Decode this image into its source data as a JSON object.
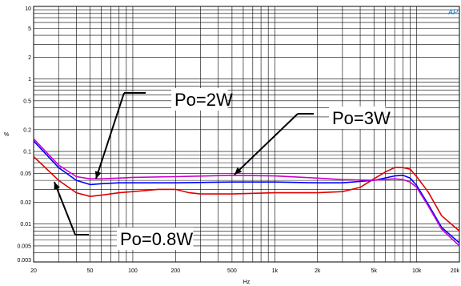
{
  "chart_data": {
    "type": "line",
    "title": "",
    "xlabel": "Hz",
    "ylabel": "%",
    "x_scale": "log",
    "y_scale": "log",
    "xlim": [
      20,
      20000
    ],
    "ylim": [
      0.003,
      10
    ],
    "grid": true,
    "x_ticks": [
      {
        "value": 20,
        "label": "20"
      },
      {
        "value": 50,
        "label": "50"
      },
      {
        "value": 100,
        "label": "100"
      },
      {
        "value": 200,
        "label": "200"
      },
      {
        "value": 500,
        "label": "500"
      },
      {
        "value": 1000,
        "label": "1k"
      },
      {
        "value": 2000,
        "label": "2k"
      },
      {
        "value": 5000,
        "label": "5k"
      },
      {
        "value": 10000,
        "label": "10k"
      },
      {
        "value": 20000,
        "label": "20k"
      }
    ],
    "y_ticks": [
      {
        "value": 10,
        "label": "10"
      },
      {
        "value": 5,
        "label": "5"
      },
      {
        "value": 2,
        "label": "2"
      },
      {
        "value": 1,
        "label": "1"
      },
      {
        "value": 0.5,
        "label": "0.5"
      },
      {
        "value": 0.2,
        "label": "0.2"
      },
      {
        "value": 0.1,
        "label": "0.1"
      },
      {
        "value": 0.05,
        "label": "0.05"
      },
      {
        "value": 0.02,
        "label": "0.02"
      },
      {
        "value": 0.01,
        "label": "0.01"
      },
      {
        "value": 0.005,
        "label": "0.005"
      },
      {
        "value": 0.003,
        "label": "0.003"
      }
    ],
    "series": [
      {
        "color": "#e00000",
        "x": [
          20,
          30,
          40,
          50,
          60,
          80,
          100,
          150,
          200,
          250,
          300,
          500,
          1000,
          2000,
          3000,
          4000,
          5000,
          6000,
          7000,
          8000,
          9000,
          10000,
          12000,
          15000,
          20000
        ],
        "y": [
          0.085,
          0.04,
          0.027,
          0.024,
          0.025,
          0.027,
          0.028,
          0.03,
          0.03,
          0.027,
          0.026,
          0.026,
          0.027,
          0.027,
          0.028,
          0.032,
          0.042,
          0.052,
          0.06,
          0.06,
          0.057,
          0.045,
          0.028,
          0.013,
          0.008
        ]
      },
      {
        "color": "#0000ff",
        "x": [
          20,
          30,
          40,
          50,
          60,
          80,
          100,
          200,
          500,
          1000,
          2000,
          3000,
          5000,
          7000,
          8000,
          9000,
          10000,
          12000,
          15000,
          20000
        ],
        "y": [
          0.14,
          0.06,
          0.04,
          0.035,
          0.036,
          0.037,
          0.037,
          0.037,
          0.038,
          0.038,
          0.037,
          0.037,
          0.04,
          0.046,
          0.047,
          0.043,
          0.034,
          0.019,
          0.009,
          0.0055
        ]
      },
      {
        "color": "#cc00cc",
        "x": [
          20,
          30,
          40,
          50,
          60,
          80,
          100,
          200,
          500,
          1000,
          2000,
          3000,
          5000,
          7000,
          8000,
          9000,
          10000,
          12000,
          15000,
          20000
        ],
        "y": [
          0.15,
          0.065,
          0.045,
          0.042,
          0.042,
          0.043,
          0.044,
          0.045,
          0.047,
          0.046,
          0.043,
          0.041,
          0.04,
          0.042,
          0.041,
          0.038,
          0.032,
          0.018,
          0.0085,
          0.005
        ]
      }
    ],
    "annotations": [
      {
        "text": "Po=2W",
        "arrow_from": [
          50,
          0.62
        ],
        "arrow_to": [
          55,
          0.042
        ]
      },
      {
        "text": "Po=3W",
        "arrow_from": [
          920,
          0.22
        ],
        "arrow_to": [
          520,
          0.048
        ]
      },
      {
        "text": "Po=0.8W",
        "arrow_from": [
          40,
          0.0077
        ],
        "arrow_to": [
          28,
          0.038
        ]
      }
    ]
  }
}
